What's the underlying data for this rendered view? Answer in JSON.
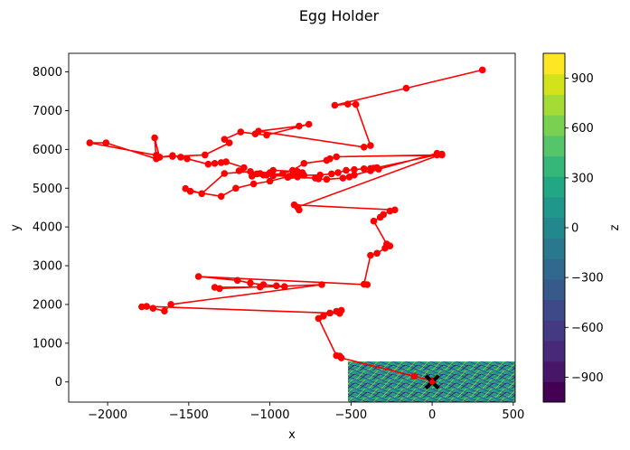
{
  "chart_data": {
    "type": "line",
    "title": "Egg Holder",
    "xlabel": "x",
    "ylabel": "y",
    "xlim": [
      -2240,
      512
    ],
    "ylim": [
      -520,
      8480
    ],
    "x_ticks": [
      -2000,
      -1500,
      -1000,
      -500,
      0,
      500
    ],
    "x_tick_labels": [
      "−2000",
      "−1500",
      "−1000",
      "−500",
      "0",
      "500"
    ],
    "y_ticks": [
      0,
      1000,
      2000,
      3000,
      4000,
      5000,
      6000,
      7000,
      8000
    ],
    "y_tick_labels": [
      "0",
      "1000",
      "2000",
      "3000",
      "4000",
      "5000",
      "6000",
      "7000",
      "8000"
    ],
    "grid": false,
    "colorbar": {
      "label": "z",
      "range": [
        -1050,
        1050
      ],
      "ticks": [
        -900,
        -600,
        -300,
        0,
        300,
        600,
        900
      ],
      "tick_labels": [
        "−900",
        "−600",
        "−300",
        "0",
        "300",
        "600",
        "900"
      ],
      "colors": [
        "#440154",
        "#481668",
        "#482878",
        "#443983",
        "#3e4989",
        "#375a8c",
        "#31688e",
        "#2a788e",
        "#23888e",
        "#1f988b",
        "#22a785",
        "#35b779",
        "#54c568",
        "#7ad151",
        "#a5db36",
        "#d2e21b",
        "#fde725"
      ]
    },
    "contour_inset": {
      "x_range": [
        -520,
        512
      ],
      "y_range": [
        -520,
        520
      ]
    },
    "optimum_marker": {
      "x": 0,
      "y": 0
    },
    "series": [
      {
        "color": "#ff0000",
        "marker": "circle",
        "x": [
          310,
          -160,
          -600,
          -520,
          -470,
          -380,
          -420,
          -1070,
          -820,
          -760,
          -1020,
          -1090,
          -1180,
          -1280,
          -1250,
          -1400,
          -1600,
          -1680,
          -1710,
          -1700,
          -2010,
          -2110,
          -1700,
          -1680,
          -1600,
          -1550,
          -1510,
          -1380,
          -1340,
          -1300,
          -1270,
          -1160,
          -1190,
          -1080,
          -1000,
          -980,
          -830,
          -800,
          -860,
          -1060,
          -1120,
          -1280,
          -1420,
          -1520,
          -1490,
          -1300,
          -1210,
          -1100,
          -1000,
          -880,
          -790,
          -690,
          -620,
          -580,
          -530,
          -480,
          -420,
          -380,
          -360,
          -340,
          30,
          60,
          -590,
          -630,
          -650,
          -790,
          -860,
          -920,
          -1020,
          -1110,
          -1040,
          -980,
          -880,
          -830,
          -830,
          -890,
          -720,
          -700,
          -650,
          -550,
          -510,
          -480,
          -380,
          -330,
          30,
          60,
          -830,
          -820,
          -850,
          -230,
          -260,
          -300,
          -320,
          -360,
          -280,
          -260,
          -290,
          -340,
          -380,
          -420,
          -400,
          -1440,
          -1200,
          -1120,
          -1040,
          -960,
          -910,
          -1060,
          -1340,
          -1310,
          -680,
          -1610,
          -1650,
          -1720,
          -1790,
          -1760,
          -570,
          -560,
          -590,
          -630,
          -670,
          -700,
          -590,
          -570,
          -560,
          -110,
          0
        ],
        "y": [
          8050,
          7580,
          7140,
          7170,
          7160,
          6100,
          6060,
          6470,
          6600,
          6650,
          6370,
          6400,
          6450,
          6260,
          6170,
          5860,
          5820,
          5800,
          6300,
          5760,
          6170,
          6170,
          5850,
          5800,
          5840,
          5800,
          5760,
          5620,
          5640,
          5660,
          5680,
          5530,
          5450,
          5370,
          5400,
          5460,
          5430,
          5400,
          5330,
          5380,
          5430,
          5380,
          4860,
          4990,
          4920,
          4790,
          5000,
          5110,
          5180,
          5310,
          5330,
          5340,
          5370,
          5400,
          5460,
          5480,
          5500,
          5510,
          5520,
          5530,
          5860,
          5860,
          5810,
          5760,
          5720,
          5640,
          5460,
          5380,
          5340,
          5310,
          5340,
          5320,
          5310,
          5290,
          5300,
          5280,
          5260,
          5240,
          5230,
          5260,
          5290,
          5340,
          5450,
          5490,
          5900,
          5880,
          4510,
          4440,
          4570,
          4440,
          4410,
          4320,
          4250,
          4150,
          3560,
          3510,
          3450,
          3320,
          3270,
          2520,
          2510,
          2720,
          2620,
          2550,
          2510,
          2480,
          2460,
          2450,
          2440,
          2410,
          2510,
          2000,
          1830,
          1900,
          1940,
          1950,
          1770,
          1850,
          1820,
          1780,
          1700,
          1640,
          680,
          670,
          620,
          150,
          30
        ]
      }
    ]
  }
}
